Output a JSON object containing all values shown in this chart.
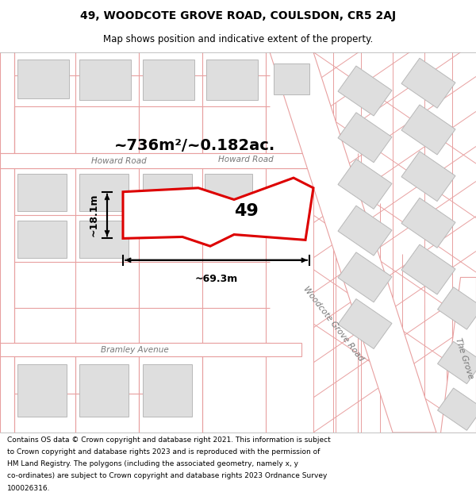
{
  "title_line1": "49, WOODCOTE GROVE ROAD, COULSDON, CR5 2AJ",
  "title_line2": "Map shows position and indicative extent of the property.",
  "footer_text": "Contains OS data © Crown copyright and database right 2021. This information is subject to Crown copyright and database rights 2023 and is reproduced with the permission of HM Land Registry. The polygons (including the associated geometry, namely x, y co-ordinates) are subject to Crown copyright and database rights 2023 Ordnance Survey 100026316.",
  "background_color": "#ffffff",
  "map_bg_color": "#ffffff",
  "line_color": "#e8a0a0",
  "plot_outline_color": "#dd0000",
  "building_fill_color": "#dedede",
  "building_outline_color": "#b8b8b8",
  "area_label": "~736m²/~0.182ac.",
  "number_label": "49",
  "width_label": "~69.3m",
  "height_label": "~18.1m",
  "title_fontsize": 10,
  "subtitle_fontsize": 8.5,
  "footer_fontsize": 6.5
}
